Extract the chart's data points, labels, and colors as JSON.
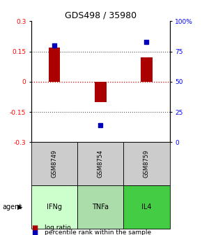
{
  "title": "GDS498 / 35980",
  "samples": [
    "GSM8749",
    "GSM8754",
    "GSM8759"
  ],
  "agents": [
    "IFNg",
    "TNFa",
    "IL4"
  ],
  "log_ratios": [
    0.17,
    -0.1,
    0.12
  ],
  "percentile_ranks": [
    80,
    14,
    83
  ],
  "bar_color": "#aa0000",
  "dot_color": "#0000bb",
  "ylim_left": [
    -0.3,
    0.3
  ],
  "ylim_right": [
    0,
    100
  ],
  "yticks_left": [
    -0.3,
    -0.15,
    0,
    0.15,
    0.3
  ],
  "ytick_labels_left": [
    "-0.3",
    "-0.15",
    "0",
    "0.15",
    "0.3"
  ],
  "yticks_right": [
    0,
    25,
    50,
    75,
    100
  ],
  "ytick_labels_right": [
    "0",
    "25",
    "50",
    "75",
    "100%"
  ],
  "agent_colors": [
    "#ccffcc",
    "#aaddaa",
    "#44cc44"
  ],
  "sample_bg": "#cccccc",
  "zero_line_color": "#cc0000",
  "dotted_line_color": "#555555",
  "bar_width": 0.25
}
